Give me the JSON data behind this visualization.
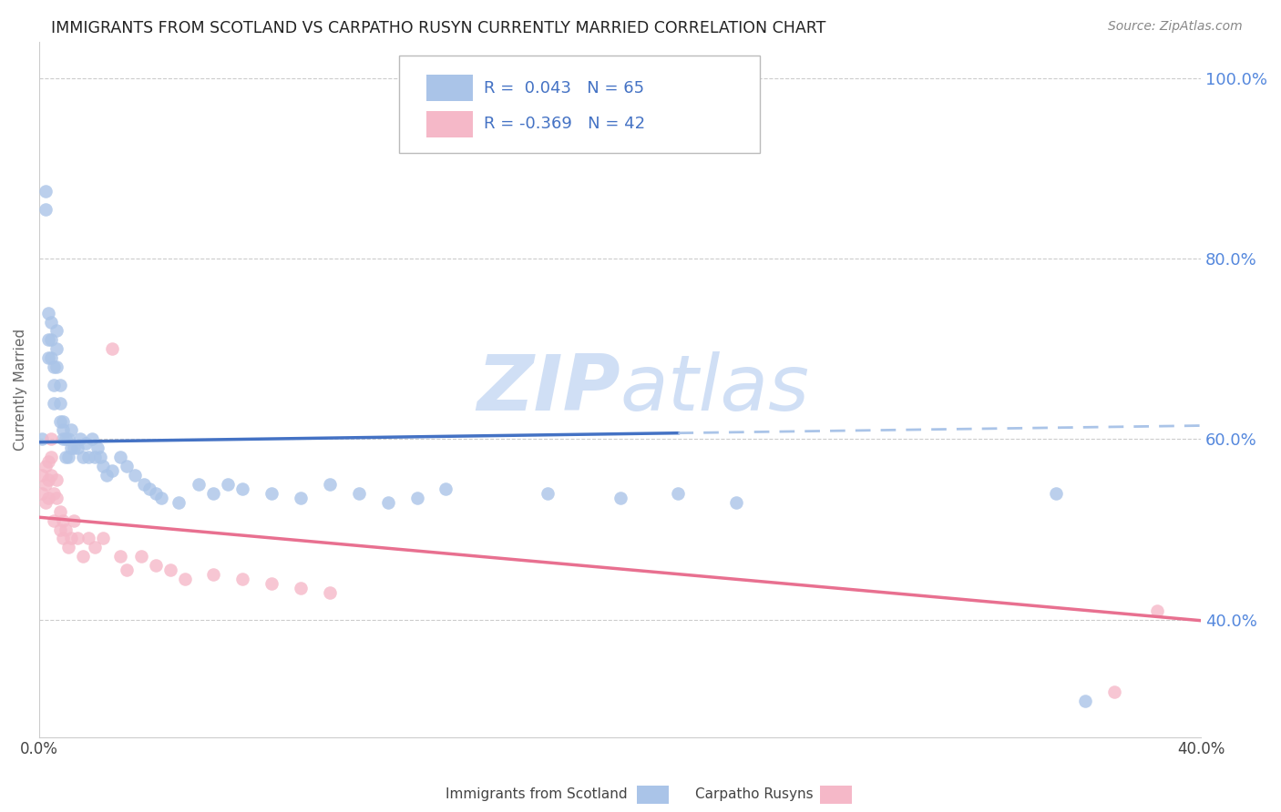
{
  "title": "IMMIGRANTS FROM SCOTLAND VS CARPATHO RUSYN CURRENTLY MARRIED CORRELATION CHART",
  "source": "Source: ZipAtlas.com",
  "ylabel": "Currently Married",
  "x_min": 0.0,
  "x_max": 0.4,
  "y_min": 0.27,
  "y_max": 1.04,
  "y_ticks": [
    0.4,
    0.6,
    0.8,
    1.0
  ],
  "y_tick_labels": [
    "40.0%",
    "60.0%",
    "80.0%",
    "100.0%"
  ],
  "x_ticks": [
    0.0,
    0.4
  ],
  "x_tick_labels": [
    "0.0%",
    "40.0%"
  ],
  "scotland_color": "#aac4e8",
  "carpatho_color": "#f5b8c8",
  "trend_blue_solid_color": "#4472c4",
  "trend_blue_dash_color": "#aac4e8",
  "trend_pink_color": "#e87090",
  "watermark": "ZIPatlas",
  "watermark_color": "#d0dff5",
  "legend_text_color": "#4472c4",
  "legend_label_color": "#333333",
  "grid_color": "#cccccc",
  "scotland_x": [
    0.001,
    0.002,
    0.002,
    0.003,
    0.003,
    0.003,
    0.004,
    0.004,
    0.004,
    0.005,
    0.005,
    0.005,
    0.006,
    0.006,
    0.006,
    0.007,
    0.007,
    0.007,
    0.008,
    0.008,
    0.008,
    0.009,
    0.009,
    0.01,
    0.01,
    0.011,
    0.011,
    0.012,
    0.013,
    0.014,
    0.015,
    0.016,
    0.017,
    0.018,
    0.019,
    0.02,
    0.021,
    0.022,
    0.023,
    0.025,
    0.028,
    0.03,
    0.033,
    0.036,
    0.038,
    0.04,
    0.042,
    0.048,
    0.055,
    0.06,
    0.065,
    0.07,
    0.08,
    0.09,
    0.1,
    0.11,
    0.12,
    0.13,
    0.14,
    0.175,
    0.2,
    0.22,
    0.24,
    0.35,
    0.36
  ],
  "scotland_y": [
    0.6,
    0.875,
    0.855,
    0.74,
    0.71,
    0.69,
    0.73,
    0.71,
    0.69,
    0.68,
    0.66,
    0.64,
    0.72,
    0.7,
    0.68,
    0.66,
    0.64,
    0.62,
    0.61,
    0.6,
    0.62,
    0.6,
    0.58,
    0.6,
    0.58,
    0.59,
    0.61,
    0.59,
    0.59,
    0.6,
    0.58,
    0.595,
    0.58,
    0.6,
    0.58,
    0.59,
    0.58,
    0.57,
    0.56,
    0.565,
    0.58,
    0.57,
    0.56,
    0.55,
    0.545,
    0.54,
    0.535,
    0.53,
    0.55,
    0.54,
    0.55,
    0.545,
    0.54,
    0.535,
    0.55,
    0.54,
    0.53,
    0.535,
    0.545,
    0.54,
    0.535,
    0.54,
    0.53,
    0.54,
    0.31
  ],
  "carpatho_x": [
    0.001,
    0.001,
    0.002,
    0.002,
    0.002,
    0.003,
    0.003,
    0.003,
    0.004,
    0.004,
    0.004,
    0.005,
    0.005,
    0.006,
    0.006,
    0.007,
    0.007,
    0.008,
    0.008,
    0.009,
    0.01,
    0.011,
    0.012,
    0.013,
    0.015,
    0.017,
    0.019,
    0.022,
    0.025,
    0.028,
    0.03,
    0.035,
    0.04,
    0.045,
    0.05,
    0.06,
    0.07,
    0.08,
    0.09,
    0.1,
    0.37,
    0.385
  ],
  "carpatho_y": [
    0.56,
    0.54,
    0.57,
    0.55,
    0.53,
    0.575,
    0.555,
    0.535,
    0.6,
    0.58,
    0.56,
    0.54,
    0.51,
    0.555,
    0.535,
    0.52,
    0.5,
    0.49,
    0.51,
    0.5,
    0.48,
    0.49,
    0.51,
    0.49,
    0.47,
    0.49,
    0.48,
    0.49,
    0.7,
    0.47,
    0.455,
    0.47,
    0.46,
    0.455,
    0.445,
    0.45,
    0.445,
    0.44,
    0.435,
    0.43,
    0.32,
    0.41
  ]
}
